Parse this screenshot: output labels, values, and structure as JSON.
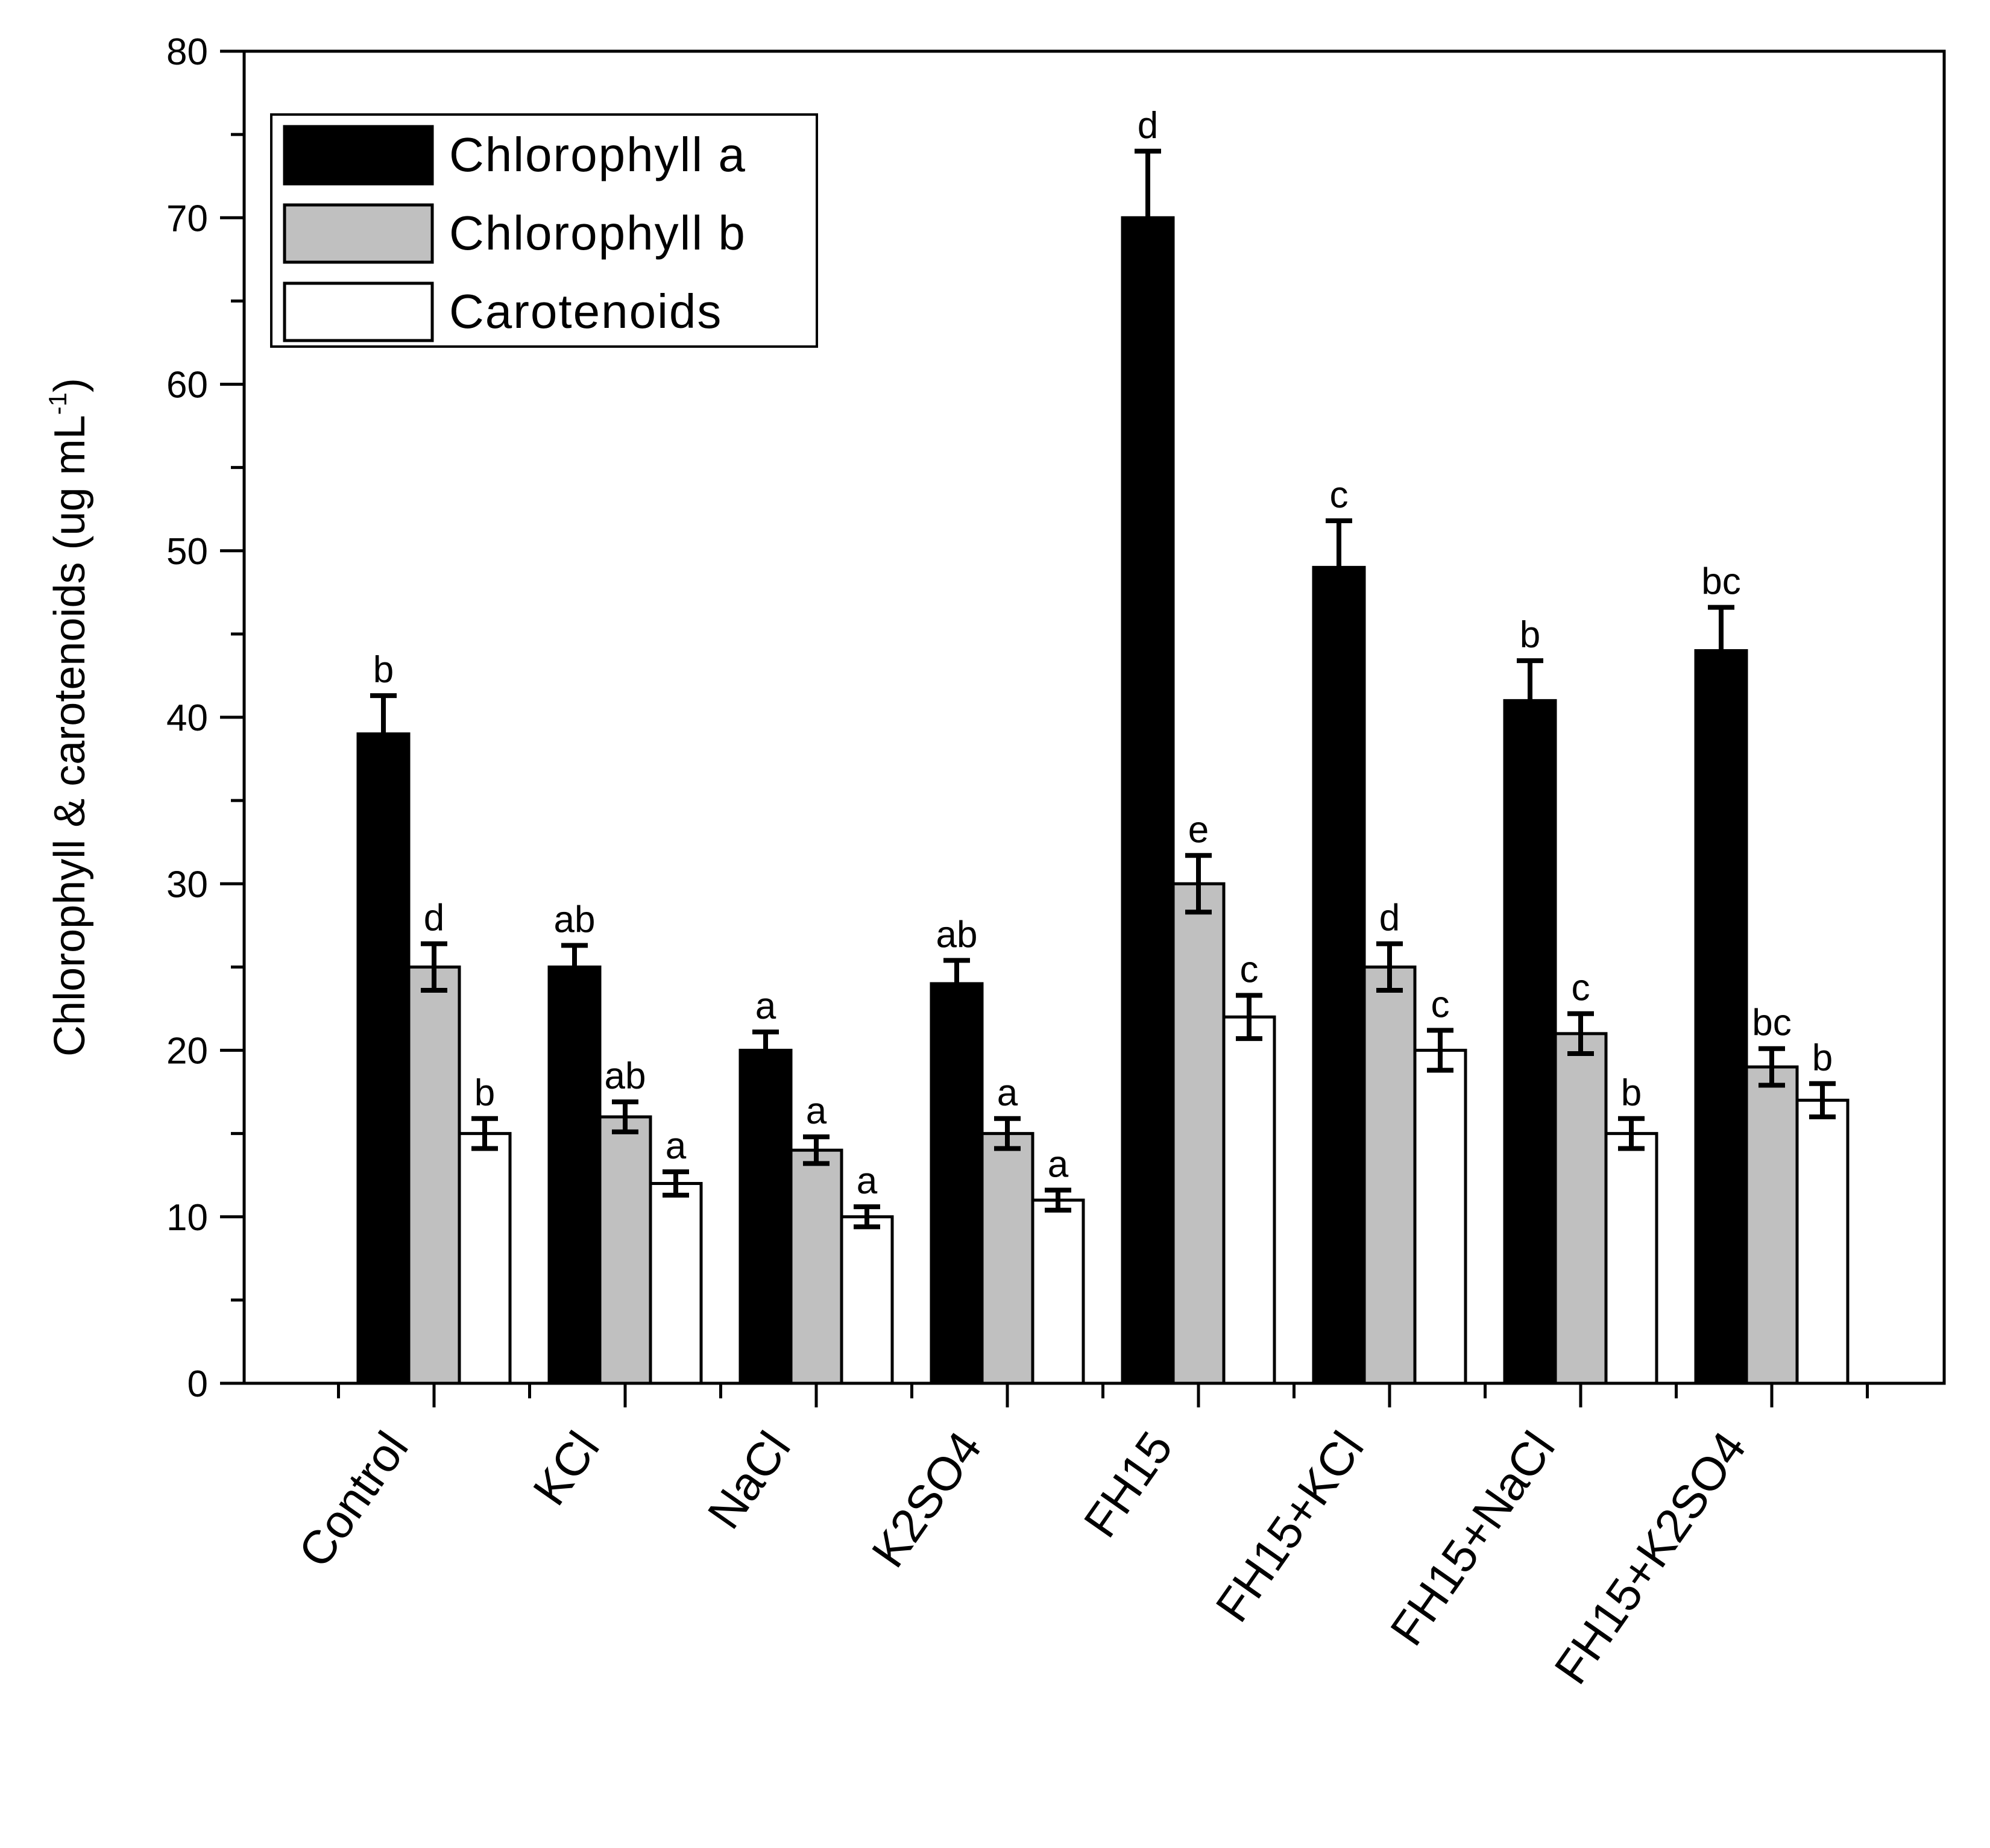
{
  "chart_data": {
    "type": "bar",
    "title": "",
    "xlabel": "",
    "ylabel": "Chlorophyll & carotenoids (ug mL",
    "ylabel_superscript": "-1",
    "ylabel_close": ")",
    "ylim": [
      0,
      80
    ],
    "yticks": [
      0,
      10,
      20,
      30,
      40,
      50,
      60,
      70,
      80
    ],
    "categories": [
      "Control",
      "KCl",
      "NaCl",
      "K2SO4",
      "FH15",
      "FH15+KCl",
      "FH15+NaCl",
      "FH15+K2SO4"
    ],
    "legend_position": "top-left",
    "series": [
      {
        "name": "Chlorophyll a",
        "color": "#000000",
        "values": [
          39,
          25,
          20,
          24,
          70,
          49,
          41,
          44
        ],
        "errors": [
          2.3,
          1.3,
          1.1,
          1.4,
          4.0,
          2.8,
          2.4,
          2.6
        ],
        "letters": [
          "b",
          "ab",
          "a",
          "ab",
          "d",
          "c",
          "b",
          "bc"
        ]
      },
      {
        "name": "Chlorophyll b",
        "color": "#c0c0c0",
        "values": [
          25,
          16,
          14,
          15,
          30,
          25,
          21,
          19
        ],
        "errors": [
          1.4,
          0.9,
          0.8,
          0.9,
          1.7,
          1.4,
          1.2,
          1.1
        ],
        "letters": [
          "d",
          "ab",
          "a",
          "a",
          "e",
          "d",
          "c",
          "bc"
        ]
      },
      {
        "name": "Carotenoids",
        "color": "#ffffff",
        "values": [
          15,
          12,
          10,
          11,
          22,
          20,
          15,
          17
        ],
        "errors": [
          0.9,
          0.7,
          0.6,
          0.6,
          1.3,
          1.2,
          0.9,
          1.0
        ],
        "letters": [
          "b",
          "a",
          "a",
          "a",
          "c",
          "c",
          "b",
          "b"
        ]
      }
    ]
  }
}
